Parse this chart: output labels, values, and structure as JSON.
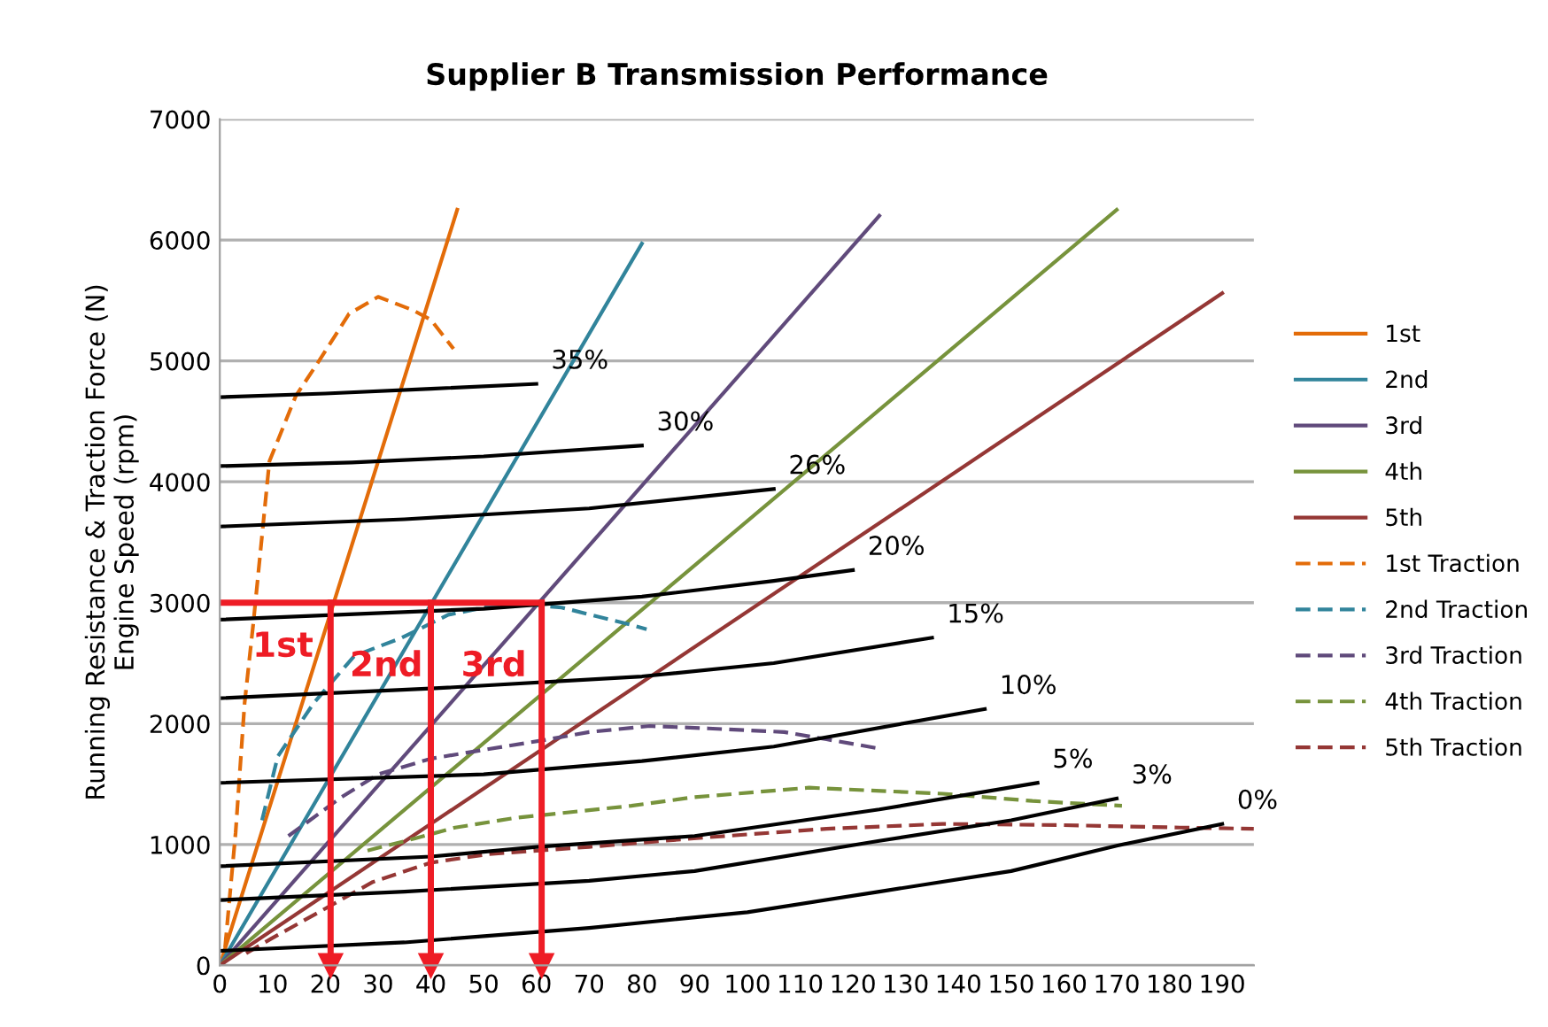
{
  "chart_data": {
    "type": "line",
    "title": "Supplier B Transmission Performance",
    "ylabel": "Running Resistance & Traction Force (N)\nEngine Speed (rpm)",
    "xlim": [
      0,
      196
    ],
    "ylim": [
      0,
      7000
    ],
    "xticks": [
      0,
      10,
      20,
      30,
      40,
      50,
      60,
      70,
      80,
      90,
      100,
      110,
      120,
      130,
      140,
      150,
      160,
      170,
      180,
      190
    ],
    "yticks": [
      0,
      1000,
      2000,
      3000,
      4000,
      5000,
      6000,
      7000
    ],
    "grid": "y",
    "legend": "right",
    "marker": "none",
    "series": [
      {
        "name": "1st",
        "color": "#e36c09",
        "line_style": "solid",
        "x": [
          0,
          45
        ],
        "values": [
          0,
          6250
        ]
      },
      {
        "name": "2nd",
        "color": "#31849b",
        "line_style": "solid",
        "x": [
          0,
          80
        ],
        "values": [
          0,
          5970
        ]
      },
      {
        "name": "3rd",
        "color": "#604a7b",
        "line_style": "solid",
        "x": [
          0,
          125
        ],
        "values": [
          0,
          6200
        ]
      },
      {
        "name": "4th",
        "color": "#77933c",
        "line_style": "solid",
        "x": [
          0,
          170
        ],
        "values": [
          0,
          6250
        ]
      },
      {
        "name": "5th",
        "color": "#953735",
        "line_style": "solid",
        "x": [
          0,
          190
        ],
        "values": [
          0,
          5560
        ]
      },
      {
        "name": "1st Traction",
        "color": "#e36c09",
        "line_style": "dashed",
        "x": [
          1,
          3,
          4.7,
          6.4,
          9.4,
          14.4,
          18.8,
          24.5,
          30,
          36.6,
          40,
          44.3
        ],
        "values": [
          150,
          1100,
          2170,
          2850,
          4170,
          4710,
          5000,
          5390,
          5530,
          5420,
          5340,
          5100
        ]
      },
      {
        "name": "2nd Traction",
        "color": "#31849b",
        "line_style": "dashed",
        "x": [
          8,
          11,
          17.8,
          25.5,
          34.5,
          43.3,
          54.7,
          64.8,
          76.8,
          80.9
        ],
        "values": [
          1200,
          1730,
          2170,
          2560,
          2710,
          2900,
          3000,
          2960,
          2830,
          2780
        ]
      },
      {
        "name": "3rd Traction",
        "color": "#604a7b",
        "line_style": "dashed",
        "x": [
          13,
          23,
          30,
          40,
          51,
          61,
          70,
          81.5,
          92.6,
          107,
          115,
          125.5
        ],
        "values": [
          1070,
          1390,
          1580,
          1710,
          1790,
          1860,
          1930,
          1980,
          1960,
          1930,
          1870,
          1790
        ]
      },
      {
        "name": "4th Traction",
        "color": "#77933c",
        "line_style": "dashed",
        "x": [
          28,
          37,
          44.6,
          56,
          67,
          78,
          89.6,
          111.7,
          137,
          154,
          171
        ],
        "values": [
          950,
          1050,
          1140,
          1220,
          1270,
          1320,
          1390,
          1470,
          1420,
          1360,
          1320
        ]
      },
      {
        "name": "5th Traction",
        "color": "#953735",
        "line_style": "dashed",
        "x": [
          5,
          9.7,
          20,
          29,
          40,
          51,
          70,
          92.6,
          115,
          137,
          160,
          182,
          196
        ],
        "values": [
          100,
          220,
          470,
          690,
          850,
          920,
          980,
          1060,
          1130,
          1170,
          1160,
          1140,
          1130
        ]
      },
      {
        "color": "#000000",
        "line_style": "solid",
        "x": [
          0,
          20,
          40,
          60
        ],
        "values": [
          4700,
          4730,
          4770,
          4810
        ]
      },
      {
        "color": "#000000",
        "line_style": "solid",
        "x": [
          0,
          25,
          50,
          80
        ],
        "values": [
          4130,
          4160,
          4210,
          4300
        ]
      },
      {
        "color": "#000000",
        "line_style": "solid",
        "x": [
          0,
          35,
          70,
          105
        ],
        "values": [
          3630,
          3690,
          3780,
          3940
        ]
      },
      {
        "color": "#000000",
        "line_style": "solid",
        "x": [
          0,
          50,
          80,
          105,
          120
        ],
        "values": [
          2860,
          2950,
          3050,
          3180,
          3270
        ]
      },
      {
        "color": "#000000",
        "line_style": "solid",
        "x": [
          0,
          40,
          80,
          105,
          135
        ],
        "values": [
          2210,
          2290,
          2390,
          2500,
          2710
        ]
      },
      {
        "color": "#000000",
        "line_style": "solid",
        "x": [
          0,
          50,
          80,
          105,
          145
        ],
        "values": [
          1510,
          1580,
          1690,
          1810,
          2120
        ]
      },
      {
        "color": "#000000",
        "line_style": "solid",
        "x": [
          0,
          40,
          60,
          90,
          125,
          155
        ],
        "values": [
          820,
          900,
          980,
          1070,
          1290,
          1510
        ]
      },
      {
        "color": "#000000",
        "line_style": "solid",
        "x": [
          0,
          35,
          70,
          90,
          125,
          150,
          170
        ],
        "values": [
          540,
          610,
          700,
          780,
          1030,
          1200,
          1380
        ]
      },
      {
        "color": "#000000",
        "line_style": "solid",
        "x": [
          0,
          35,
          70,
          100,
          125,
          150,
          170,
          190
        ],
        "values": [
          120,
          190,
          310,
          440,
          610,
          780,
          990,
          1170
        ]
      },
      {
        "color": "#ee1c25",
        "line_style": "solid",
        "x": [
          0,
          61
        ],
        "values": [
          3000,
          3000
        ]
      },
      {
        "color": "#ee1c25",
        "line_style": "solid",
        "marker": "triangle",
        "x": [
          21,
          21
        ],
        "values": [
          3000,
          0
        ]
      },
      {
        "color": "#ee1c25",
        "line_style": "solid",
        "marker": "triangle",
        "x": [
          40,
          40
        ],
        "values": [
          3000,
          0
        ]
      },
      {
        "color": "#ee1c25",
        "line_style": "solid",
        "marker": "triangle",
        "x": [
          61,
          61
        ],
        "values": [
          3000,
          0
        ]
      }
    ],
    "annotations": [
      {
        "text": "35%",
        "x": 60,
        "y": 4810
      },
      {
        "text": "30%",
        "x": 80,
        "y": 4300
      },
      {
        "text": "26%",
        "x": 105,
        "y": 3940
      },
      {
        "text": "20%",
        "x": 120,
        "y": 3270
      },
      {
        "text": "15%",
        "x": 135,
        "y": 2710
      },
      {
        "text": "10%",
        "x": 145,
        "y": 2120
      },
      {
        "text": "5%",
        "x": 155,
        "y": 1510
      },
      {
        "text": "3%",
        "x": 170,
        "y": 1380
      },
      {
        "text": "0%",
        "x": 190,
        "y": 1170
      },
      "1st",
      "2nd",
      "3rd"
    ]
  }
}
